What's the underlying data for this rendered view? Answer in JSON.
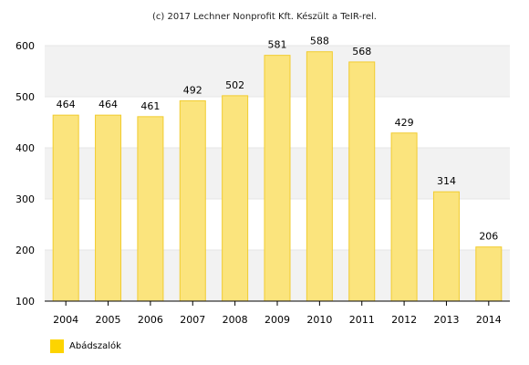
{
  "credit": "(c) 2017 Lechner Nonprofit Kft. Készült a TeIR-rel.",
  "colors": {
    "bar_fill": "#fbe47d",
    "bar_stroke": "#f1cc30",
    "band": "#f2f2f2",
    "legend_swatch": "#fdd400",
    "axis": "#000000"
  },
  "chart_data": {
    "type": "bar",
    "categories": [
      "2004",
      "2005",
      "2006",
      "2007",
      "2008",
      "2009",
      "2010",
      "2011",
      "2012",
      "2013",
      "2014"
    ],
    "series": [
      {
        "name": "Abádszalók",
        "values": [
          464,
          464,
          461,
          492,
          502,
          581,
          588,
          568,
          429,
          314,
          206
        ]
      }
    ],
    "ylim": [
      100,
      600
    ],
    "yticks": [
      100,
      200,
      300,
      400,
      500,
      600
    ],
    "grid": true,
    "legend_position": "bottom-left",
    "data_labels": true
  }
}
